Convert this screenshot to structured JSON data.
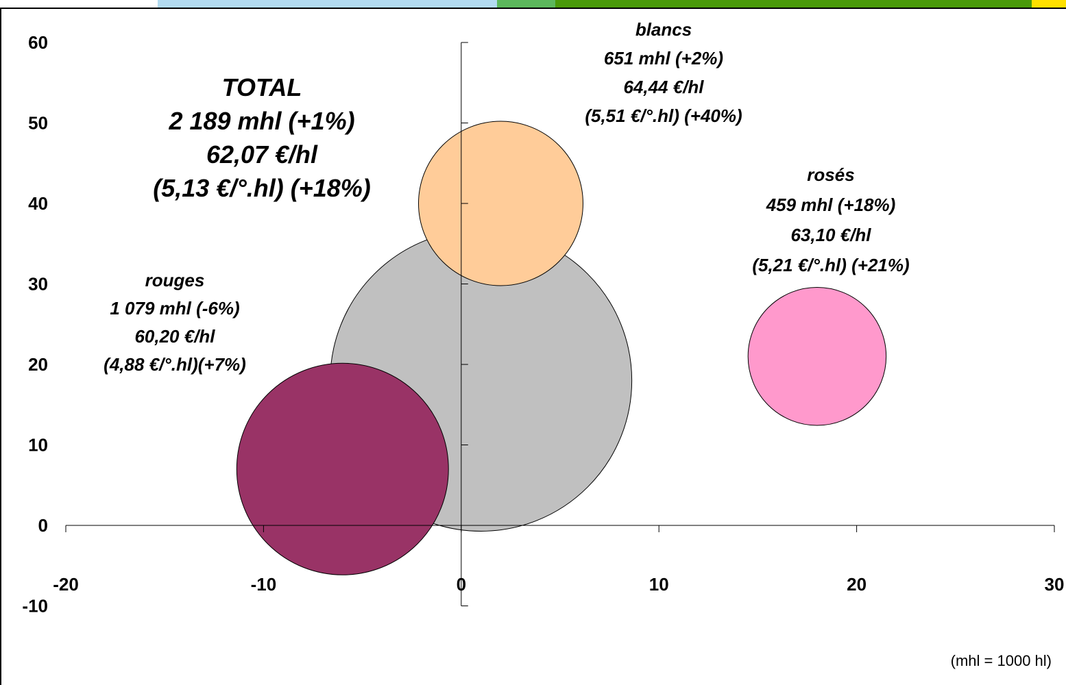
{
  "colors": {
    "topbar": [
      "#b3dbf0",
      "#5cb85c",
      "#4a9a0a",
      "#ffe000"
    ],
    "total": "#c0c0c0",
    "blancs": "#ffcc99",
    "roses": "#ff99cc",
    "rouges": "#993366",
    "outline": "#000000"
  },
  "chart_data": {
    "type": "bubble",
    "title": "",
    "xlabel": "",
    "ylabel": "",
    "xlim": [
      -20,
      30
    ],
    "ylim": [
      -10,
      60
    ],
    "x_ticks": [
      -20,
      -10,
      0,
      10,
      20,
      30
    ],
    "y_ticks": [
      -10,
      0,
      10,
      20,
      30,
      40,
      50,
      60
    ],
    "x_tick_labels": [
      "-20",
      "-10",
      "0",
      "10",
      "20",
      "30"
    ],
    "y_tick_labels": [
      "-10",
      "0",
      "10",
      "20",
      "30",
      "40",
      "50",
      "60"
    ],
    "unit_note": "(mhl = 1000 hl)",
    "series": [
      {
        "key": "total",
        "x": 1,
        "y": 18,
        "size": 2189,
        "color_key": "total",
        "label_lines": [
          "TOTAL",
          "2 189 mhl (+1%)",
          "62,07 €/hl",
          "(5,13 €/°.hl) (+18%)"
        ]
      },
      {
        "key": "rouges",
        "x": -6,
        "y": 7,
        "size": 1079,
        "color_key": "rouges",
        "label_lines": [
          "rouges",
          "1 079 mhl (-6%)",
          "60,20 €/hl",
          "(4,88 €/°.hl)(+7%)"
        ]
      },
      {
        "key": "blancs",
        "x": 2,
        "y": 40,
        "size": 651,
        "color_key": "blancs",
        "label_lines": [
          "blancs",
          "651 mhl (+2%)",
          "64,44 €/hl",
          "(5,51 €/°.hl) (+40%)"
        ]
      },
      {
        "key": "roses",
        "x": 18,
        "y": 21,
        "size": 459,
        "color_key": "roses",
        "label_lines": [
          "rosés",
          "459 mhl (+18%)",
          "63,10 €/hl",
          "(5,21 €/°.hl) (+21%)"
        ]
      }
    ]
  }
}
